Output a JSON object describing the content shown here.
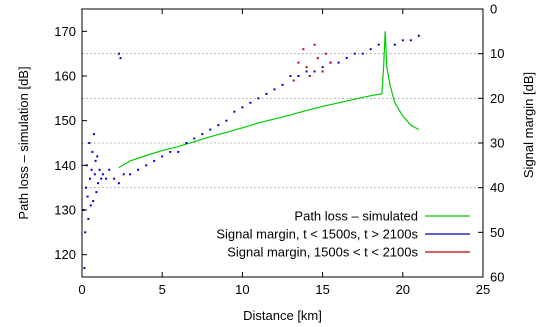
{
  "chart_data": {
    "type": "scatter",
    "xlabel": "Distance [km]",
    "ylabel_left": "Path loss – simulation [dB]",
    "ylabel_right": "Signal margin [dB]",
    "xlim": [
      0,
      25
    ],
    "ylim_left": [
      115,
      175
    ],
    "ylim_right": [
      60,
      0
    ],
    "x_ticks": [
      "0",
      "5",
      "10",
      "15",
      "20",
      "25"
    ],
    "y_left_ticks": [
      "120",
      "130",
      "140",
      "150",
      "160",
      "170"
    ],
    "y_right_ticks": [
      "0",
      "10",
      "20",
      "30",
      "40",
      "50",
      "60"
    ],
    "right_grid_levels": [
      10,
      20,
      30,
      40
    ],
    "legend_position": "bottom-right",
    "series": [
      {
        "name": "Path loss – simulated",
        "style": "line",
        "color": "#00cc00",
        "x": [
          2.3,
          3,
          4,
          5,
          6,
          7,
          8,
          9,
          10,
          11,
          12,
          13,
          14,
          15,
          16,
          17,
          18,
          18.7,
          18.8,
          18.9,
          19.0,
          19.2,
          19.5,
          20.0,
          20.5,
          21.0
        ],
        "y": [
          139.5,
          141,
          142.2,
          143.3,
          144.2,
          145.3,
          146.4,
          147.4,
          148.4,
          149.5,
          150.4,
          151.3,
          152.3,
          153.2,
          154.0,
          154.8,
          155.6,
          156.0,
          162,
          170,
          162,
          158,
          154,
          151,
          149,
          148
        ]
      },
      {
        "name": "Signal margin, t < 1500s, t > 2100s",
        "style": "points",
        "color": "#0000cc",
        "x": [
          0.1,
          0.15,
          0.2,
          0.25,
          0.3,
          0.35,
          0.4,
          0.45,
          0.5,
          0.55,
          0.6,
          0.65,
          0.7,
          0.75,
          0.8,
          0.85,
          0.9,
          0.95,
          1.0,
          1.1,
          1.2,
          1.3,
          1.5,
          1.7,
          2.0,
          2.3,
          2.6,
          3.0,
          3.5,
          4.0,
          4.5,
          5.0,
          5.5,
          6.0,
          6.5,
          7.0,
          7.5,
          8.0,
          8.5,
          9.0,
          9.5,
          10.0,
          10.5,
          11.0,
          11.5,
          12.0,
          12.5,
          13.0,
          13.5,
          14.0,
          14.5,
          15.0,
          15.5,
          16.0,
          16.5,
          17.0,
          17.5,
          18.0,
          18.5,
          19.5,
          20.0,
          20.5,
          21.0,
          2.3,
          2.4
        ],
        "y": [
          45,
          58,
          50,
          40,
          35,
          42,
          47,
          30,
          38,
          44,
          36,
          32,
          43,
          28,
          37,
          34,
          41,
          33,
          39,
          36,
          38,
          37,
          38,
          36,
          38,
          39,
          37,
          37,
          36,
          35,
          34,
          33,
          32,
          32,
          30,
          29,
          28,
          27,
          26,
          25,
          23,
          22,
          21,
          20,
          19,
          18,
          17,
          15,
          15,
          14,
          14,
          13,
          12,
          12,
          11,
          10,
          10,
          9,
          8,
          8,
          7,
          7,
          6,
          10,
          11
        ]
      },
      {
        "name": "Signal margin, 1500s < t < 2100s",
        "style": "points",
        "color": "#cc0000",
        "x": [
          13.2,
          13.5,
          13.8,
          14.0,
          14.2,
          14.5,
          14.7,
          15.0,
          15.2,
          15.5
        ],
        "y": [
          16,
          12,
          9,
          13,
          15,
          8,
          11,
          14,
          10,
          12
        ]
      }
    ]
  }
}
